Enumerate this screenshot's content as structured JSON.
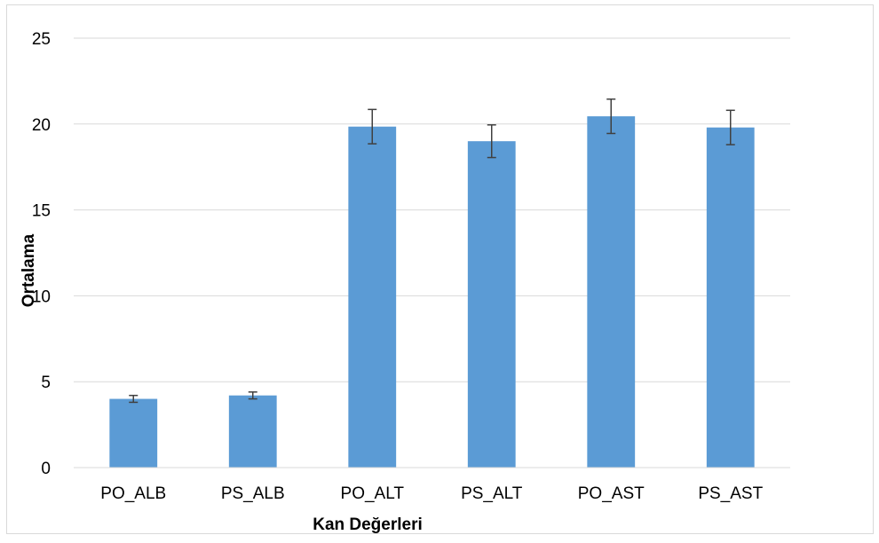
{
  "chart_data": {
    "type": "bar",
    "title": "",
    "xlabel": "Kan Değerleri",
    "ylabel": "Ortalama",
    "categories": [
      "PO_ALB",
      "PS_ALB",
      "PO_ALT",
      "PS_ALT",
      "PO_AST",
      "PS_AST"
    ],
    "series": [
      {
        "values": [
          4.0,
          4.2,
          19.85,
          19.0,
          20.45,
          19.8
        ],
        "error": [
          0.2,
          0.2,
          1.0,
          0.95,
          1.0,
          1.0
        ],
        "color": "#5B9BD5"
      }
    ],
    "ylim": [
      0,
      25
    ],
    "yticks": [
      0,
      5,
      10,
      15,
      20,
      25
    ],
    "grid": true,
    "gridline_color": "#d9d9d9",
    "error_bar_color": "#404040",
    "legend": "none"
  }
}
